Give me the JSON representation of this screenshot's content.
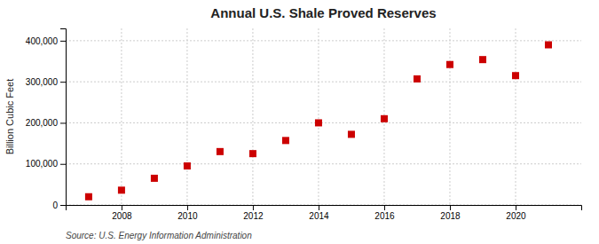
{
  "chart_data": {
    "type": "scatter",
    "title": "Annual U.S. Shale Proved Reserves",
    "ylabel": "Billion Cubic Feet",
    "source": "Source: U.S. Energy Information Administration",
    "x": [
      2007,
      2008,
      2009,
      2010,
      2011,
      2012,
      2013,
      2014,
      2015,
      2016,
      2017,
      2018,
      2019,
      2020,
      2021
    ],
    "values": [
      20000,
      36000,
      65000,
      95000,
      130000,
      125000,
      157000,
      200000,
      172000,
      210000,
      307000,
      342000,
      354000,
      315000,
      390000
    ],
    "color": "#cc0000",
    "marker": "square",
    "xlim": [
      2006.3,
      2022.0
    ],
    "xticks": [
      2008,
      2010,
      2012,
      2014,
      2016,
      2018,
      2020
    ],
    "ylim": [
      0,
      430000
    ],
    "yticks": [
      0,
      {
        "value": 100000,
        "label": "100,000"
      },
      {
        "value": 200000,
        "label": "200,000"
      },
      {
        "value": 300000,
        "label": "300,000"
      },
      {
        "value": 400000,
        "label": "400,000"
      }
    ],
    "grid": true
  }
}
